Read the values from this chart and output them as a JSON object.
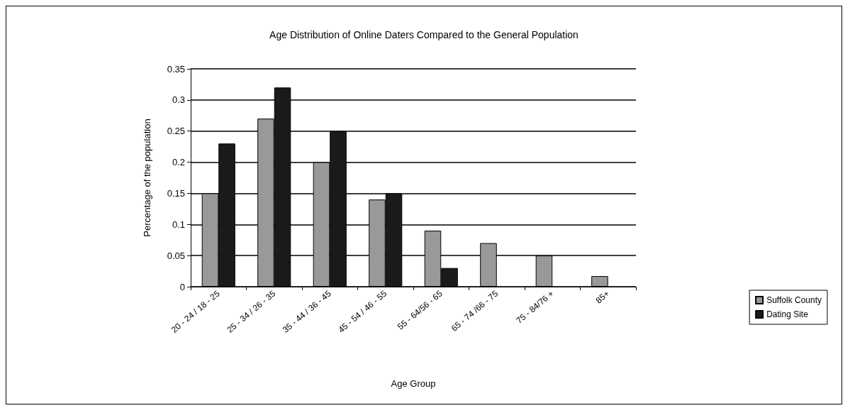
{
  "chart_data": {
    "type": "bar",
    "title": "Age Distribution of Online Daters Compared to the General Population",
    "xlabel": "Age Group",
    "ylabel": "Percentage of the population",
    "categories": [
      "20 - 24 / 18 - 25",
      "25 - 34 / 26 - 35",
      "35 - 44 / 36 - 45",
      "45 - 54 / 46 - 55",
      "55 - 64/56 - 65",
      "65 - 74 /66 - 75",
      "75 - 84/76 +",
      "85+"
    ],
    "series": [
      {
        "name": "Suffolk County",
        "color": "#999999",
        "values": [
          0.15,
          0.27,
          0.2,
          0.14,
          0.09,
          0.07,
          0.05,
          0.017
        ]
      },
      {
        "name": "Dating Site",
        "color": "#1a1a1a",
        "values": [
          0.23,
          0.32,
          0.25,
          0.15,
          0.03,
          null,
          null,
          null
        ]
      }
    ],
    "ylim": [
      0,
      0.35
    ],
    "yticks": [
      0,
      0.05,
      0.1,
      0.15,
      0.2,
      0.25,
      0.3,
      0.35
    ],
    "grid": "y",
    "legend": "right"
  }
}
